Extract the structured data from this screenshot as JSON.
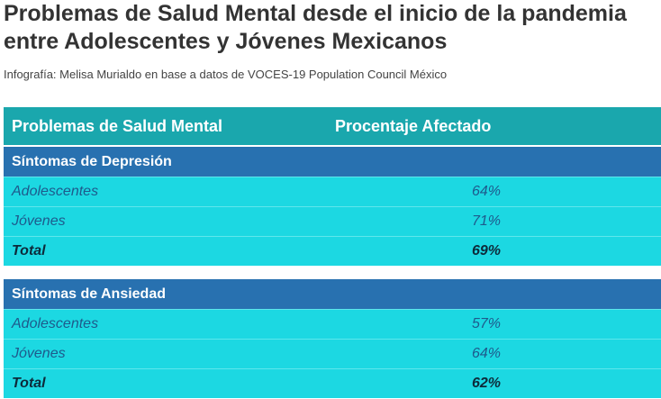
{
  "title": "Problemas de Salud Mental desde el inicio de la pandemia entre Adolescentes y Jóvenes Mexicanos",
  "subtitle": "Infografía: Melisa Murialdo en base a datos de VOCES-19 Population Council México",
  "colors": {
    "header_bg": "#1aa7ad",
    "section_bg": "#2871b0",
    "row_bg": "#1cd8e2",
    "row_text": "#1e5a8c"
  },
  "chart_data": {
    "type": "table",
    "columns": [
      "Problemas de Salud Mental",
      "Procentaje Afectado"
    ],
    "sections": [
      {
        "label": "Síntomas de Depresión",
        "rows": [
          {
            "label": "Adolescentes",
            "value": "64%"
          },
          {
            "label": "Jóvenes",
            "value": "71%"
          },
          {
            "label": "Total",
            "value": "69%"
          }
        ]
      },
      {
        "label": "Síntomas de Ansiedad",
        "rows": [
          {
            "label": "Adolescentes",
            "value": "57%"
          },
          {
            "label": "Jóvenes",
            "value": "64%"
          },
          {
            "label": "Total",
            "value": "62%"
          }
        ]
      }
    ]
  }
}
